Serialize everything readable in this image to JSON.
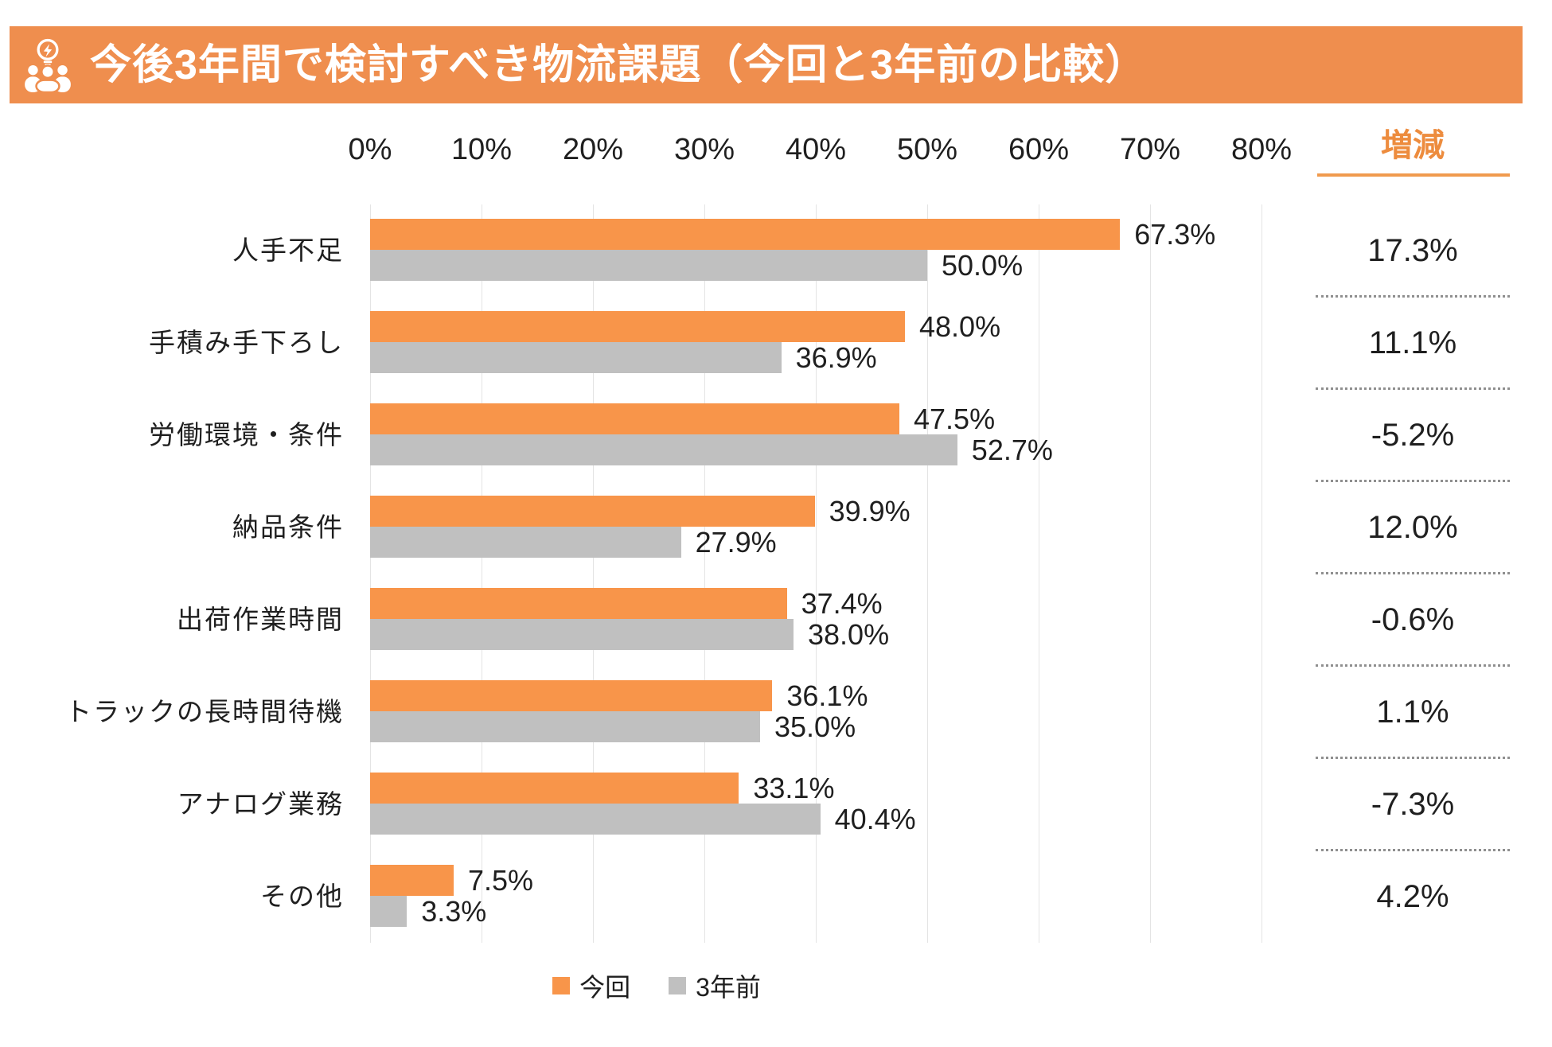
{
  "header": {
    "title": "今後3年間で検討すべき物流課題（今回と3年前の比較）",
    "icon": "idea-people-icon"
  },
  "colors": {
    "banner_bg": "#EF8E4E",
    "banner_text": "#FFFFFF",
    "bar_current": "#F8954A",
    "bar_previous": "#C0C0C0",
    "diff_accent": "#ED8C3E",
    "diff_underline": "#F09A4E",
    "text": "#1F1F1F",
    "gridline": "#E4E4E4",
    "dotted_separator": "#8F8F8F"
  },
  "chart_data": {
    "type": "bar",
    "orientation": "horizontal",
    "title": "今後3年間で検討すべき物流課題（今回と3年前の比較）",
    "categories": [
      "人手不足",
      "手積み手下ろし",
      "労働環境・条件",
      "納品条件",
      "出荷作業時間",
      "トラックの長時間待機",
      "アナログ業務",
      "その他"
    ],
    "series": [
      {
        "name": "今回",
        "color": "#F8954A",
        "values": [
          67.3,
          48.0,
          47.5,
          39.9,
          37.4,
          36.1,
          33.1,
          7.5
        ]
      },
      {
        "name": "3年前",
        "color": "#C0C0C0",
        "values": [
          50.0,
          36.9,
          52.7,
          27.9,
          38.0,
          35.0,
          40.4,
          3.3
        ]
      }
    ],
    "diff_column": {
      "header": "増減",
      "values": [
        17.3,
        11.1,
        -5.2,
        12.0,
        -0.6,
        1.1,
        -7.3,
        4.2
      ]
    },
    "x_ticks": [
      "0%",
      "10%",
      "20%",
      "30%",
      "40%",
      "50%",
      "60%",
      "70%",
      "80%"
    ],
    "xlim": [
      0,
      80
    ],
    "grid": true,
    "data_labels": true,
    "legend_position": "bottom"
  }
}
